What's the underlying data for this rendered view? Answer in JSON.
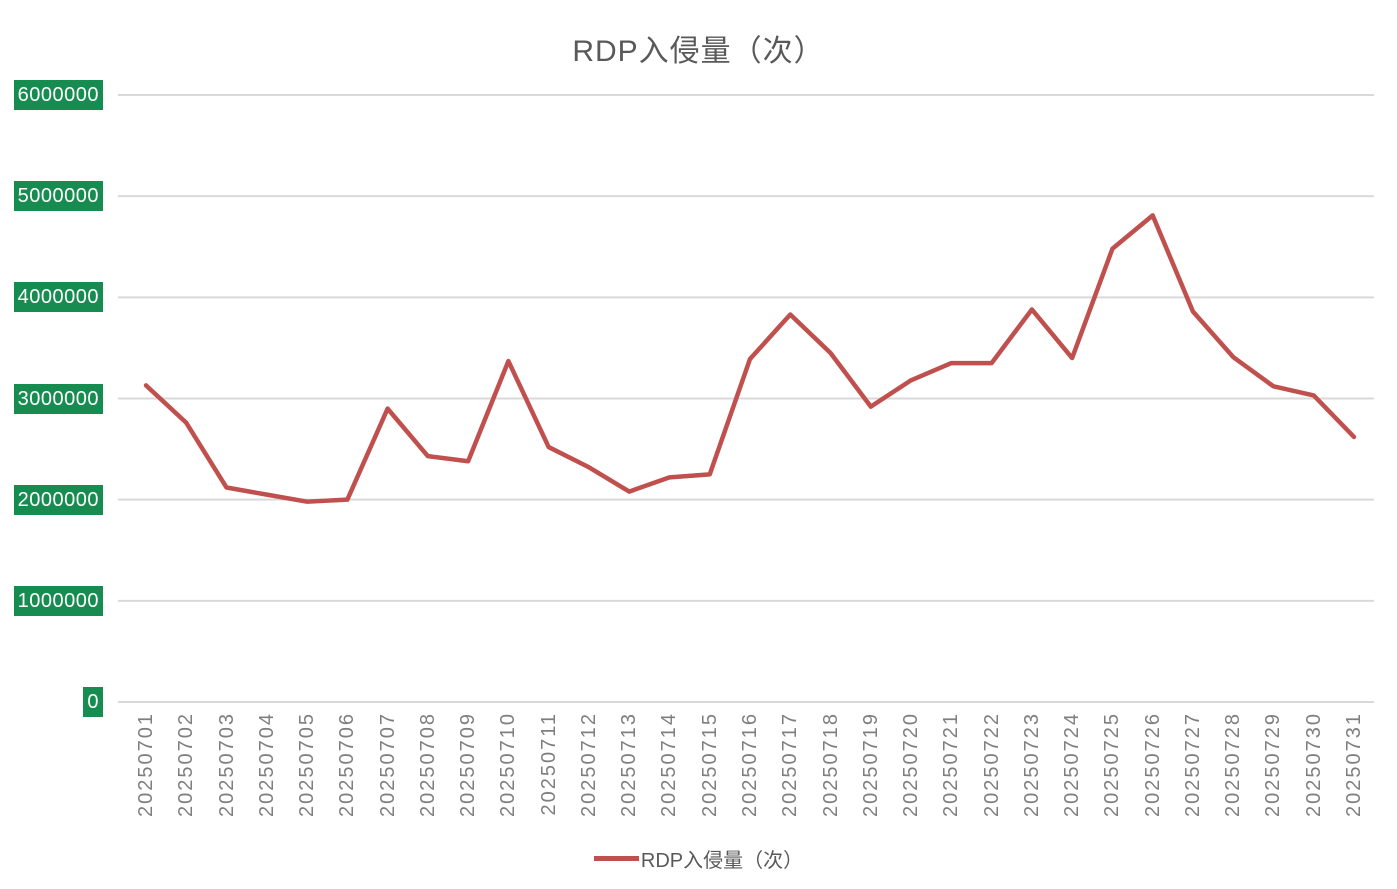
{
  "title": "RDP入侵量（次）",
  "legend": {
    "label": "RDP入侵量（次）"
  },
  "colors": {
    "line": "#C0504D",
    "y_label_bg": "#178C50",
    "y_label_text": "#FFFFFF",
    "gridline": "#D9D9D9",
    "title_text": "#595959",
    "x_label_text": "#7F7F7F",
    "background": "#FFFFFF"
  },
  "chart_data": {
    "type": "line",
    "title": "RDP入侵量（次）",
    "x": [
      "20250701",
      "20250702",
      "20250703",
      "20250704",
      "20250705",
      "20250706",
      "20250707",
      "20250708",
      "20250709",
      "20250710",
      "20250711",
      "20250712",
      "20250713",
      "20250714",
      "20250715",
      "20250716",
      "20250717",
      "20250718",
      "20250719",
      "20250720",
      "20250721",
      "20250722",
      "20250723",
      "20250724",
      "20250725",
      "20250726",
      "20250727",
      "20250728",
      "20250729",
      "20250730",
      "20250731"
    ],
    "series": [
      {
        "name": "RDP入侵量（次）",
        "values": [
          3130000,
          2760000,
          2120000,
          2050000,
          1980000,
          2000000,
          2900000,
          2430000,
          2380000,
          3370000,
          2520000,
          2320000,
          2080000,
          2220000,
          2250000,
          3390000,
          3830000,
          3450000,
          2920000,
          3180000,
          3350000,
          3350000,
          3880000,
          3400000,
          4480000,
          4810000,
          3860000,
          3410000,
          3120000,
          3030000,
          2620000
        ]
      }
    ],
    "ylim": [
      0,
      6000000
    ],
    "y_ticks": [
      0,
      1000000,
      2000000,
      3000000,
      4000000,
      5000000,
      6000000
    ],
    "grid": "horizontal",
    "legend_position": "bottom"
  }
}
